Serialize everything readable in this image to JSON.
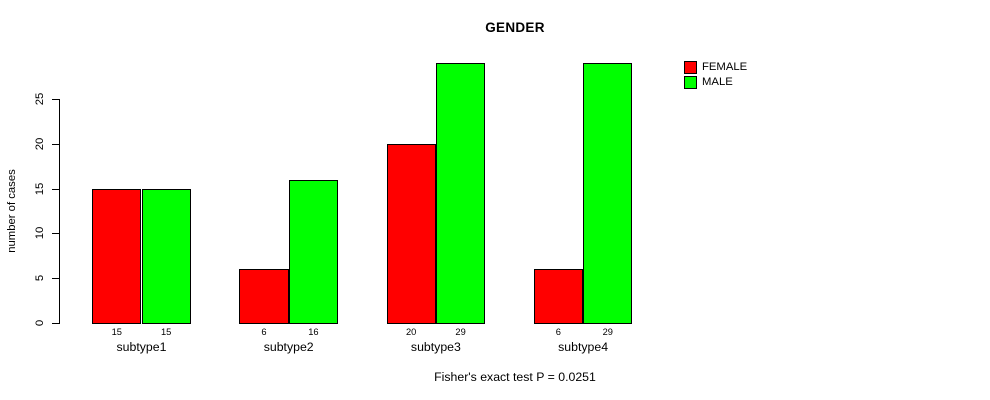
{
  "chart_data": {
    "type": "bar",
    "grouped": true,
    "title": "GENDER",
    "xlabel": "",
    "ylabel": "number of cases",
    "categories": [
      "subtype1",
      "subtype2",
      "subtype3",
      "subtype4"
    ],
    "series": [
      {
        "name": "FEMALE",
        "color": "#ff0000",
        "values": [
          15,
          6,
          20,
          6
        ]
      },
      {
        "name": "MALE",
        "color": "#00ff00",
        "values": [
          15,
          16,
          29,
          29
        ]
      }
    ],
    "y_ticks": [
      0,
      5,
      10,
      15,
      20,
      25
    ],
    "ylim": [
      0,
      29
    ],
    "grid": false,
    "legend_position": "top-right",
    "show_bar_values": true,
    "annotation": "Fisher's exact test P = 0.0251"
  },
  "colors": {
    "background": "#ffffff",
    "axis": "#000000",
    "text": "#000000",
    "female": "#ff0000",
    "male": "#00ff00"
  }
}
